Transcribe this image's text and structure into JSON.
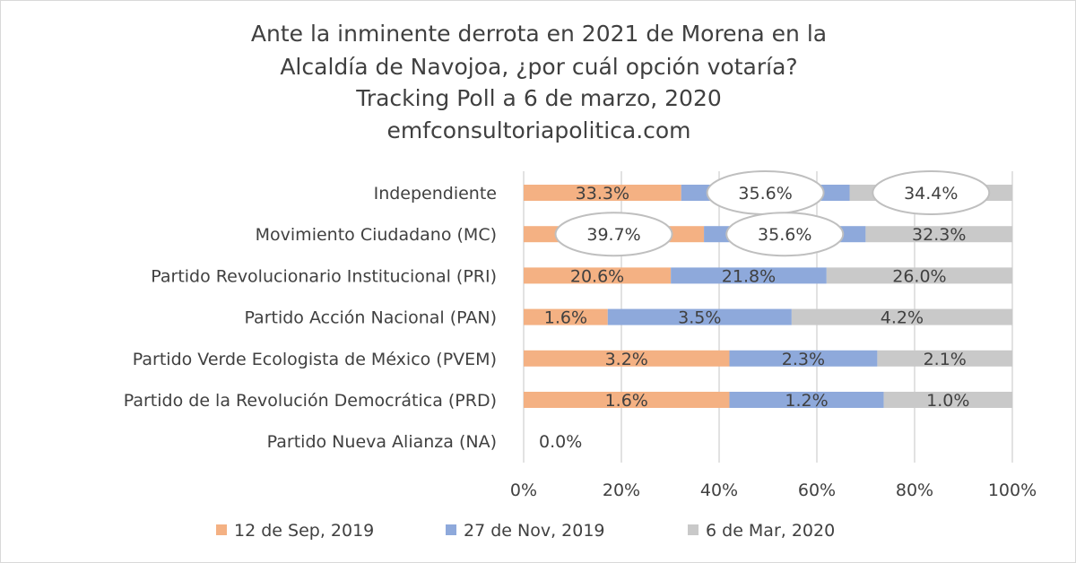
{
  "chart_data": {
    "type": "bar",
    "orientation": "horizontal",
    "stacking": "percent",
    "title_lines": [
      "Ante la inminente derrota en 2021 de Morena en la",
      "Alcaldía de Navojoa, ¿por cuál opción votaría?",
      "Tracking Poll a 6 de marzo, 2020",
      "emfconsultoriapolitica.com"
    ],
    "categories": [
      "Independiente",
      "Movimiento Ciudadano (MC)",
      "Partido Revolucionario Institucional (PRI)",
      "Partido Acción Nacional (PAN)",
      "Partido Verde Ecologista de México (PVEM)",
      "Partido de la Revolución Democrática (PRD)",
      "Partido Nueva Alianza (NA)"
    ],
    "series": [
      {
        "name": "12 de Sep, 2019",
        "color": "#F4B183",
        "values": [
          33.3,
          39.7,
          20.6,
          1.6,
          3.2,
          1.6,
          0.0
        ],
        "callouts": [
          false,
          true,
          false,
          false,
          false,
          false,
          false
        ]
      },
      {
        "name": "27 de Nov, 2019",
        "color": "#8EA9DB",
        "values": [
          35.6,
          35.6,
          21.8,
          3.5,
          2.3,
          1.2,
          0.0
        ],
        "callouts": [
          true,
          true,
          false,
          false,
          false,
          false,
          false
        ]
      },
      {
        "name": "6 de Mar, 2020",
        "color": "#C9C9C9",
        "values": [
          34.4,
          32.3,
          26.0,
          4.2,
          2.1,
          1.0,
          0.0
        ],
        "callouts": [
          true,
          false,
          false,
          false,
          false,
          false,
          false
        ]
      }
    ],
    "na_label": "0.0%",
    "xticks": [
      "0%",
      "20%",
      "40%",
      "60%",
      "80%",
      "100%"
    ],
    "xlim": [
      0,
      100
    ],
    "grid": true,
    "legend_position": "bottom"
  }
}
